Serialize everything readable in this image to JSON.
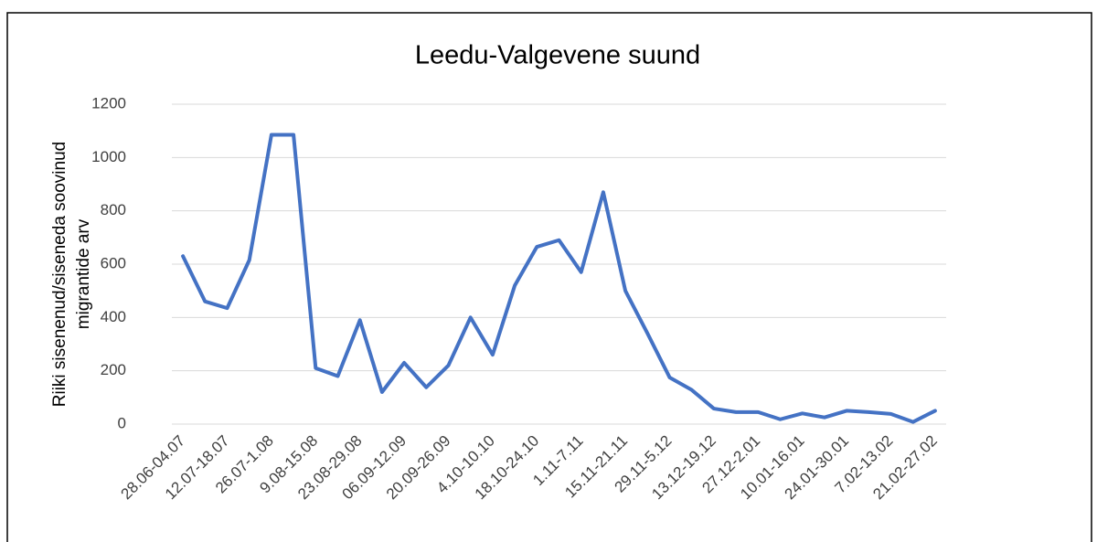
{
  "chart_data": {
    "type": "line",
    "title": "Leedu-Valgevene suund",
    "y_label": [
      "Riiki sisenenud/siseneda soovinud",
      "migrantide arv"
    ],
    "categories": [
      "28.06-04.07",
      null,
      "12.07-18.07",
      null,
      "26.07-1.08",
      null,
      "9.08-15.08",
      null,
      "23.08-29.08",
      null,
      "06.09-12.09",
      null,
      "20.09-26.09",
      null,
      "4.10-10.10",
      null,
      "18.10-24.10",
      null,
      "1.11-7.11",
      null,
      "15.11-21.11",
      null,
      "29.11-5.12",
      null,
      "13.12-19.12",
      null,
      "27.12-2.01",
      null,
      "10.01-16.01",
      null,
      "24.01-30.01",
      null,
      "7.02-13.02",
      null,
      "21.02-27.02"
    ],
    "values": [
      630,
      460,
      435,
      615,
      1085,
      1085,
      210,
      180,
      390,
      120,
      230,
      138,
      220,
      400,
      260,
      520,
      665,
      690,
      570,
      870,
      500,
      340,
      175,
      128,
      58,
      45,
      45,
      18,
      40,
      25,
      50,
      45,
      38,
      8,
      50
    ],
    "color": "#4472c4",
    "ylim": [
      0,
      1200
    ],
    "yticks": [
      0,
      200,
      400,
      600,
      800,
      1000,
      1200
    ],
    "grid": true
  }
}
